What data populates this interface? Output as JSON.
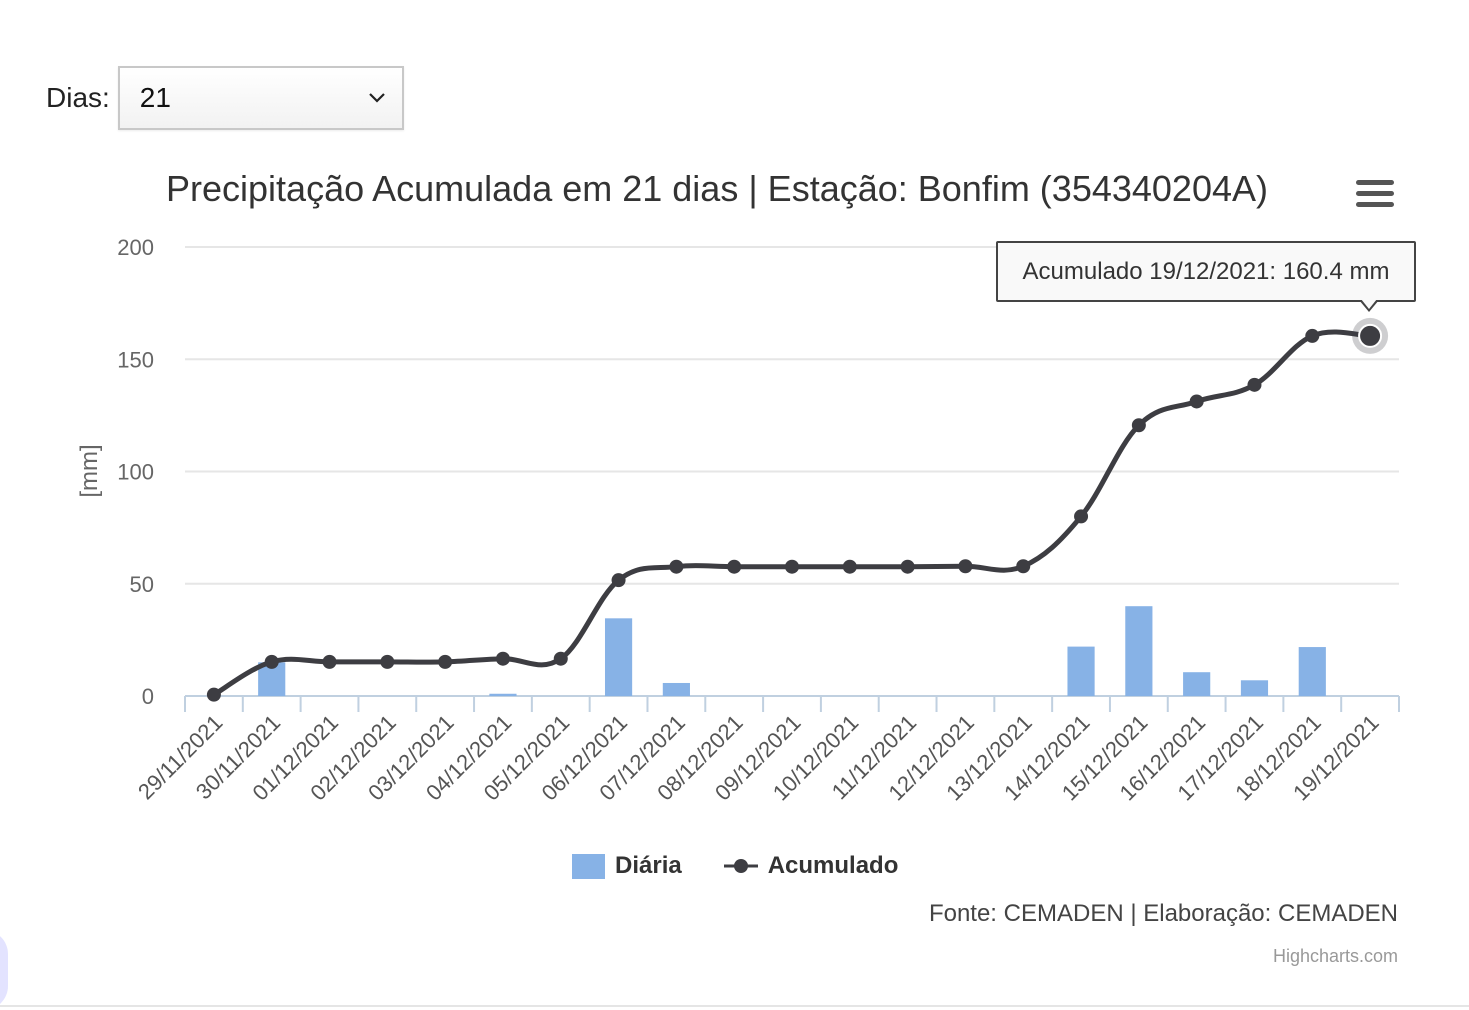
{
  "controls": {
    "dias_label": "Dias:",
    "dias_value": "21"
  },
  "chart_data": {
    "type": "bar",
    "title": "Precipitação Acumulada em 21 dias | Estação: Bonfim (354340204A)",
    "ylabel": "[mm]",
    "xlabel": "",
    "ylim": [
      0,
      200
    ],
    "yticks": [
      0,
      50,
      100,
      150,
      200
    ],
    "grid": true,
    "legend_position": "bottom",
    "categories": [
      "29/11/2021",
      "30/11/2021",
      "01/12/2021",
      "02/12/2021",
      "03/12/2021",
      "04/12/2021",
      "05/12/2021",
      "06/12/2021",
      "07/12/2021",
      "08/12/2021",
      "09/12/2021",
      "10/12/2021",
      "11/12/2021",
      "12/12/2021",
      "13/12/2021",
      "14/12/2021",
      "15/12/2021",
      "16/12/2021",
      "17/12/2021",
      "18/12/2021",
      "19/12/2021"
    ],
    "series": [
      {
        "name": "Diária",
        "type": "bar",
        "color": "#87b2e6",
        "values": [
          0,
          15,
          0,
          0,
          0,
          1,
          0,
          34.6,
          5.8,
          0,
          0,
          0,
          0,
          0,
          0,
          22,
          40,
          10.6,
          7,
          21.8,
          0
        ]
      },
      {
        "name": "Acumulado",
        "type": "line",
        "color": "#3d3d42",
        "values": [
          0.6,
          15.2,
          15.2,
          15.2,
          15.2,
          16.6,
          16.6,
          51.6,
          57.6,
          57.6,
          57.6,
          57.6,
          57.6,
          57.8,
          57.8,
          80,
          120.6,
          131.2,
          138.6,
          160.4,
          160.4
        ]
      }
    ],
    "tooltip": "Acumulado 19/12/2021: 160.4 mm"
  },
  "credits": {
    "source": "Fonte: CEMADEN | Elaboração: CEMADEN",
    "highcharts": "Highcharts.com"
  },
  "icons": {
    "menu": "hamburger-menu-icon",
    "dropdown": "chevron-down-icon"
  }
}
